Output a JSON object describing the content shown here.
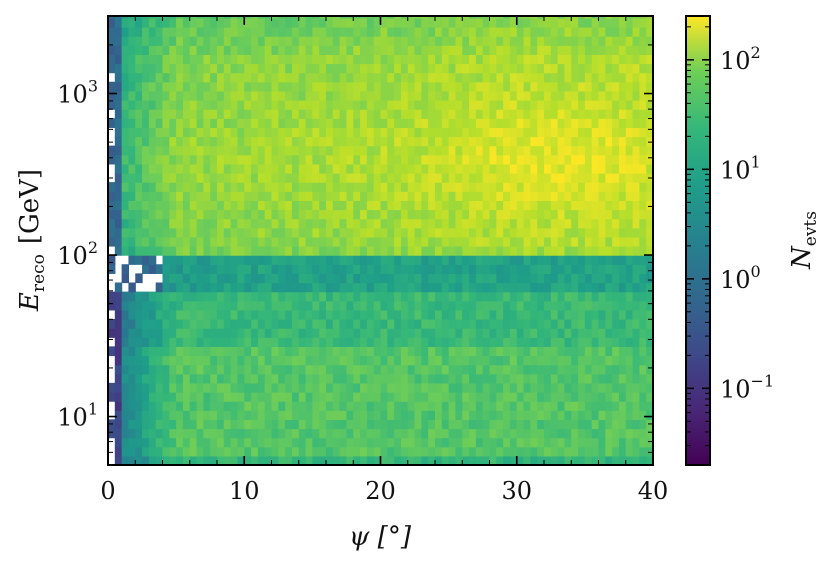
{
  "chart_data": {
    "type": "heatmap",
    "title": "",
    "xlabel": "ψ [°]",
    "ylabel_main": "E",
    "ylabel_sub": "reco",
    "ylabel_unit": "[GeV]",
    "xlim": [
      0,
      40
    ],
    "ylim_log10": [
      0.7,
      3.48
    ],
    "x_ticks": [
      {
        "value": 0,
        "label": "0"
      },
      {
        "value": 10,
        "label": "10"
      },
      {
        "value": 20,
        "label": "20"
      },
      {
        "value": 30,
        "label": "30"
      },
      {
        "value": 40,
        "label": "40"
      }
    ],
    "y_ticks": [
      {
        "log10": 1,
        "base": "10",
        "exp": "1"
      },
      {
        "log10": 2,
        "base": "10",
        "exp": "2"
      },
      {
        "log10": 3,
        "base": "10",
        "exp": "3"
      }
    ],
    "y_scale": "log",
    "colorbar": {
      "label_main": "N",
      "label_sub": "evts",
      "scale": "log",
      "log10_range": [
        -1.7,
        2.4
      ],
      "colormap": "viridis",
      "ticks": [
        {
          "log10": -1,
          "base": "10",
          "exp": "−1"
        },
        {
          "log10": 0,
          "base": "10",
          "exp": "0"
        },
        {
          "log10": 1,
          "base": "10",
          "exp": "1"
        },
        {
          "log10": 2,
          "base": "10",
          "exp": "2"
        }
      ]
    },
    "grid": false,
    "binning": {
      "x_bins": 80,
      "y_bins_log10_width": 0.0565
    },
    "regions_log10_counts": [
      {
        "description": "E >= 100 GeV, psi 0-1",
        "value": -0.3
      },
      {
        "description": "E >= 100 GeV, psi 1-5",
        "value": 0.9
      },
      {
        "description": "E >= 100 GeV, psi 5-40 core (200-1000 GeV)",
        "value": 1.9
      },
      {
        "description": "E >= 100 GeV, psi 30-35 peak (~400 GeV)",
        "value": 2.25
      },
      {
        "description": "E 60-100 GeV band",
        "value": 0.4
      },
      {
        "description": "E 5-60 GeV, psi 5-40",
        "value": 1.3
      }
    ]
  }
}
